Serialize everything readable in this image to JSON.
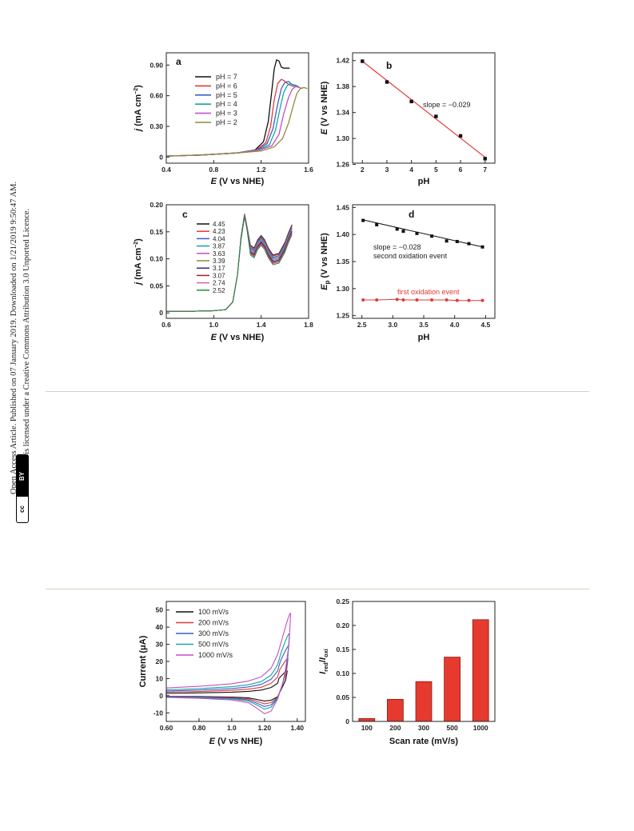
{
  "sidebar": {
    "line1": "Open Access Article. Published on 07 January 2019. Downloaded on 1/21/2019 9:50:47 AM.",
    "line2": "This article is licensed under a Creative Commons Attribution 3.0 Unported Licence.",
    "badge_cc": "cc",
    "badge_by": "BY"
  },
  "colors": {
    "ph7": "#111111",
    "ph6": "#e03a3a",
    "ph5": "#3a5fc8",
    "ph4": "#1aa3a3",
    "ph3": "#c64fc6",
    "ph2": "#8f8a3c",
    "fit": "#e03a3a",
    "black": "#111111",
    "red": "#e03a3a",
    "bar": "#e63a2e"
  },
  "chart_data": [
    {
      "id": "a",
      "type": "line",
      "letter": "a",
      "xlabel_italic": "E",
      "xlabel_rest": " (V vs NHE)",
      "ylabel_italic": "j",
      "ylabel_rest": " (mA cm",
      "ylabel_sup": "−2",
      "ylabel_end": ")",
      "xlim": [
        0.4,
        1.6
      ],
      "ylim": [
        -0.06,
        1.02
      ],
      "xticks": [
        "0.4",
        "0.8",
        "1.2",
        "1.6"
      ],
      "xtick_values": [
        0.4,
        0.8,
        1.2,
        1.6
      ],
      "yticks": [
        "0",
        "0.30",
        "0.60",
        "0.90"
      ],
      "ytick_values": [
        0,
        0.3,
        0.6,
        0.9
      ],
      "series": [
        {
          "name": "pH = 7",
          "color_key": "ph7",
          "x": [
            0.4,
            0.7,
            1.0,
            1.15,
            1.22,
            1.26,
            1.29,
            1.31,
            1.33,
            1.35,
            1.37,
            1.39,
            1.41,
            1.44
          ],
          "y": [
            0.01,
            0.02,
            0.04,
            0.07,
            0.15,
            0.35,
            0.65,
            0.86,
            0.95,
            0.94,
            0.88,
            0.87,
            0.87,
            0.87
          ]
        },
        {
          "name": "pH = 6",
          "color_key": "ph6",
          "x": [
            0.4,
            0.7,
            1.0,
            1.16,
            1.24,
            1.28,
            1.31,
            1.34,
            1.37,
            1.39,
            1.42,
            1.45,
            1.48
          ],
          "y": [
            0.01,
            0.02,
            0.04,
            0.07,
            0.14,
            0.3,
            0.56,
            0.72,
            0.76,
            0.75,
            0.72,
            0.7,
            0.69
          ]
        },
        {
          "name": "pH = 5",
          "color_key": "ph5",
          "x": [
            0.4,
            0.7,
            1.0,
            1.17,
            1.25,
            1.3,
            1.34,
            1.37,
            1.4,
            1.43,
            1.46,
            1.5
          ],
          "y": [
            0.01,
            0.02,
            0.04,
            0.07,
            0.13,
            0.28,
            0.52,
            0.67,
            0.73,
            0.74,
            0.71,
            0.7
          ]
        },
        {
          "name": "pH = 4",
          "color_key": "ph4",
          "x": [
            0.4,
            0.7,
            1.0,
            1.18,
            1.27,
            1.32,
            1.36,
            1.39,
            1.42,
            1.45,
            1.48,
            1.52
          ],
          "y": [
            0.01,
            0.02,
            0.04,
            0.07,
            0.12,
            0.26,
            0.48,
            0.63,
            0.7,
            0.72,
            0.7,
            0.69
          ]
        },
        {
          "name": "pH = 3",
          "color_key": "ph3",
          "x": [
            0.4,
            0.7,
            1.0,
            1.19,
            1.29,
            1.35,
            1.39,
            1.43,
            1.46,
            1.49,
            1.52,
            1.55
          ],
          "y": [
            0.01,
            0.02,
            0.04,
            0.07,
            0.11,
            0.22,
            0.42,
            0.58,
            0.66,
            0.69,
            0.68,
            0.67
          ]
        },
        {
          "name": "pH = 2",
          "color_key": "ph2",
          "x": [
            0.4,
            0.7,
            1.0,
            1.2,
            1.31,
            1.38,
            1.43,
            1.47,
            1.5,
            1.53,
            1.56,
            1.59
          ],
          "y": [
            0.01,
            0.02,
            0.04,
            0.06,
            0.1,
            0.18,
            0.33,
            0.5,
            0.62,
            0.67,
            0.68,
            0.67
          ]
        }
      ]
    },
    {
      "id": "b",
      "type": "scatter",
      "letter": "b",
      "xlabel": "pH",
      "ylabel_italic": "E",
      "ylabel_rest": " (V vs NHE)",
      "xlim": [
        1.6,
        7.4
      ],
      "ylim": [
        1.262,
        1.432
      ],
      "xticks": [
        "2",
        "3",
        "4",
        "5",
        "6",
        "7"
      ],
      "xtick_values": [
        2,
        3,
        4,
        5,
        6,
        7
      ],
      "yticks": [
        "1.26",
        "1.30",
        "1.34",
        "1.38",
        "1.42"
      ],
      "ytick_values": [
        1.26,
        1.3,
        1.34,
        1.38,
        1.42
      ],
      "points": {
        "x": [
          2,
          3,
          4,
          5,
          6,
          7
        ],
        "y": [
          1.419,
          1.387,
          1.357,
          1.334,
          1.304,
          1.269
        ]
      },
      "fit": {
        "x": [
          2,
          7
        ],
        "y": [
          1.419,
          1.271
        ]
      },
      "annotation": "slope = −0.029"
    },
    {
      "id": "c",
      "type": "line",
      "letter": "c",
      "xlabel_italic": "E",
      "xlabel_rest": " (V vs NHE)",
      "ylabel_italic": "j",
      "ylabel_rest": " (mA cm",
      "ylabel_sup": "−2",
      "ylabel_end": ")",
      "xlim": [
        0.6,
        1.8
      ],
      "ylim": [
        -0.01,
        0.2
      ],
      "xticks": [
        "0.6",
        "1.0",
        "1.4",
        "1.8"
      ],
      "xtick_values": [
        0.6,
        1.0,
        1.4,
        1.8
      ],
      "yticks": [
        "0",
        "0.05",
        "0.10",
        "0.15",
        "0.20"
      ],
      "ytick_values": [
        0,
        0.05,
        0.1,
        0.15,
        0.2
      ],
      "legend_title": "",
      "series": [
        {
          "name": "4.45",
          "color": "#111111",
          "offset": 0.0
        },
        {
          "name": "4.23",
          "color": "#e03a3a",
          "offset": -0.002
        },
        {
          "name": "4.04",
          "color": "#3a5fc8",
          "offset": -0.004
        },
        {
          "name": "3.87",
          "color": "#1aa3a3",
          "offset": -0.006
        },
        {
          "name": "3.63",
          "color": "#c64fc6",
          "offset": -0.008
        },
        {
          "name": "3.39",
          "color": "#8f8a3c",
          "offset": -0.01
        },
        {
          "name": "3.17",
          "color": "#2a2aa0",
          "offset": -0.012
        },
        {
          "name": "3.07",
          "color": "#a01e28",
          "offset": -0.014
        },
        {
          "name": "2.74",
          "color": "#e05ca8",
          "offset": -0.016
        },
        {
          "name": "2.52",
          "color": "#1e8f3c",
          "offset": -0.018
        }
      ],
      "base_curve": {
        "x": [
          0.6,
          0.8,
          1.0,
          1.1,
          1.16,
          1.2,
          1.23,
          1.26,
          1.28,
          1.31,
          1.34,
          1.37,
          1.4,
          1.43,
          1.46,
          1.5,
          1.55,
          1.6,
          1.63,
          1.66
        ],
        "y": [
          0.003,
          0.003,
          0.004,
          0.006,
          0.02,
          0.07,
          0.14,
          0.183,
          0.16,
          0.125,
          0.12,
          0.135,
          0.143,
          0.135,
          0.12,
          0.107,
          0.11,
          0.13,
          0.148,
          0.163
        ]
      }
    },
    {
      "id": "d",
      "type": "scatter",
      "letter": "d",
      "xlabel": "pH",
      "ylabel_italic": "E",
      "ylabel_sub": "p",
      "ylabel_rest": " (V vs NHE)",
      "xlim": [
        2.35,
        4.65
      ],
      "ylim": [
        1.245,
        1.455
      ],
      "xticks": [
        "2.5",
        "3.0",
        "3.5",
        "4.0",
        "4.5"
      ],
      "xtick_values": [
        2.5,
        3.0,
        3.5,
        4.0,
        4.5
      ],
      "yticks": [
        "1.25",
        "1.30",
        "1.35",
        "1.40",
        "1.45"
      ],
      "ytick_values": [
        1.25,
        1.3,
        1.35,
        1.4,
        1.45
      ],
      "series": [
        {
          "name": "second oxidation event",
          "color_key": "black",
          "x": [
            2.52,
            2.74,
            3.07,
            3.17,
            3.39,
            3.63,
            3.87,
            4.04,
            4.23,
            4.45
          ],
          "y": [
            1.426,
            1.418,
            1.41,
            1.406,
            1.402,
            1.397,
            1.388,
            1.387,
            1.383,
            1.377
          ],
          "fit": {
            "x": [
              2.52,
              4.45
            ],
            "y": [
              1.427,
              1.377
            ]
          }
        },
        {
          "name": "first oxidation event",
          "color_key": "red",
          "x": [
            2.52,
            2.74,
            3.07,
            3.17,
            3.39,
            3.63,
            3.87,
            4.04,
            4.23,
            4.45
          ],
          "y": [
            1.279,
            1.279,
            1.28,
            1.279,
            1.279,
            1.279,
            1.279,
            1.278,
            1.278,
            1.278
          ]
        }
      ],
      "annotation_slope": "slope = −0.028",
      "annotation_second": "second oxidation event",
      "annotation_first": "first oxidation event"
    },
    {
      "id": "e",
      "type": "line",
      "xlabel_italic": "E",
      "xlabel_rest": " (V vs NHE)",
      "ylabel": "Current (μA)",
      "xlim": [
        0.6,
        1.45
      ],
      "ylim": [
        -15,
        55
      ],
      "xticks": [
        "0.60",
        "0.80",
        "1.0",
        "1.20",
        "1.40"
      ],
      "xtick_values": [
        0.6,
        0.8,
        1.0,
        1.2,
        1.4
      ],
      "yticks": [
        "-10",
        "0",
        "10",
        "20",
        "30",
        "40",
        "50"
      ],
      "ytick_values": [
        -10,
        0,
        10,
        20,
        30,
        40,
        50
      ],
      "series": [
        {
          "name": "100 mV/s",
          "color": "#111111",
          "scale": 0.3
        },
        {
          "name": "200 mV/s",
          "color": "#e03a3a",
          "scale": 0.45
        },
        {
          "name": "300 mV/s",
          "color": "#3a5fc8",
          "scale": 0.6
        },
        {
          "name": "500 mV/s",
          "color": "#1aa3a3",
          "scale": 0.75
        },
        {
          "name": "1000 mV/s",
          "color": "#c64fc6",
          "scale": 1.0
        }
      ]
    },
    {
      "id": "f",
      "type": "bar",
      "xlabel": "Scan rate (mV/s)",
      "ylabel_italic_a": "I",
      "ylabel_sub_a": "red",
      "ylabel_slash": "/",
      "ylabel_italic_b": "I",
      "ylabel_sub_b": "oxi",
      "categories": [
        "100",
        "200",
        "300",
        "500",
        "1000"
      ],
      "values": [
        0.006,
        0.046,
        0.083,
        0.134,
        0.212
      ],
      "ylim": [
        0,
        0.25
      ],
      "yticks": [
        "0",
        "0.05",
        "0.10",
        "0.15",
        "0.20",
        "0.25"
      ],
      "ytick_values": [
        0,
        0.05,
        0.1,
        0.15,
        0.2,
        0.25
      ]
    }
  ]
}
